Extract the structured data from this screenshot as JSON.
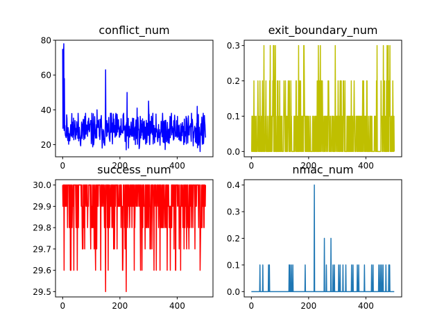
{
  "chart_data": [
    {
      "type": "line",
      "title": "conflict_num",
      "xlim": [
        -25,
        525
      ],
      "ylim": [
        13,
        80
      ],
      "xticks": [
        0,
        200,
        400
      ],
      "xtick_labels": [
        "0",
        "200",
        "400"
      ],
      "yticks": [
        20,
        40,
        60,
        80
      ],
      "ytick_labels": [
        "20",
        "40",
        "60",
        "80"
      ],
      "color": "#0000ff",
      "grid": false,
      "series": [
        {
          "kind": "noise",
          "min": 16,
          "max": 38,
          "base": 28,
          "spread": 5,
          "seed": 11,
          "points": [
            [
              0,
              75
            ],
            [
              2,
              62
            ],
            [
              3,
              72
            ],
            [
              4,
              78
            ],
            [
              6,
              58
            ],
            [
              8,
              31
            ],
            [
              10,
              25
            ],
            [
              15,
              35
            ],
            [
              40,
              29
            ],
            [
              80,
              38
            ],
            [
              120,
              40
            ],
            [
              150,
              63
            ],
            [
              170,
              38
            ],
            [
              225,
              50
            ],
            [
              230,
              18
            ],
            [
              260,
              41
            ],
            [
              300,
              45
            ],
            [
              360,
              34
            ],
            [
              380,
              38
            ],
            [
              450,
              38
            ],
            [
              470,
              42
            ],
            [
              480,
              16
            ]
          ],
          "n": 500
        }
      ]
    },
    {
      "type": "line",
      "title": "exit_boundary_num",
      "xlim": [
        -25,
        525
      ],
      "ylim": [
        -0.015,
        0.315
      ],
      "xticks": [
        0,
        200,
        400
      ],
      "xtick_labels": [
        "0",
        "200",
        "400"
      ],
      "yticks": [
        0.0,
        0.1,
        0.2,
        0.3
      ],
      "ytick_labels": [
        "0.0",
        "0.1",
        "0.2",
        "0.3"
      ],
      "color": "#bfbf00",
      "grid": false,
      "series": [
        {
          "kind": "discrete",
          "levels": [
            0,
            0.1,
            0.2,
            0.3
          ],
          "weights": [
            0.55,
            0.3,
            0.1,
            0.05
          ],
          "seed": 23,
          "n": 500
        }
      ]
    },
    {
      "type": "line",
      "title": "success_num",
      "xlim": [
        -25,
        525
      ],
      "ylim": [
        29.475,
        30.025
      ],
      "xticks": [
        0,
        200,
        400
      ],
      "xtick_labels": [
        "0",
        "200",
        "400"
      ],
      "yticks": [
        29.5,
        29.6,
        29.7,
        29.8,
        29.9,
        30.0
      ],
      "ytick_labels": [
        "29.5",
        "29.6",
        "29.7",
        "29.8",
        "29.9",
        "30.0"
      ],
      "color": "#ff0000",
      "grid": false,
      "series": [
        {
          "kind": "discrete",
          "levels": [
            30.0,
            29.9,
            29.8,
            29.7,
            29.6
          ],
          "weights": [
            0.55,
            0.25,
            0.12,
            0.05,
            0.03
          ],
          "seed": 37,
          "n": 500,
          "points": [
            [
              150,
              29.5
            ],
            [
              222,
              29.5
            ],
            [
              5,
              29.6
            ],
            [
              115,
              29.6
            ],
            [
              395,
              29.6
            ],
            [
              480,
              29.6
            ]
          ]
        }
      ]
    },
    {
      "type": "line",
      "title": "nmac_num",
      "xlim": [
        -25,
        525
      ],
      "ylim": [
        -0.02,
        0.42
      ],
      "xticks": [
        0,
        200,
        400
      ],
      "xtick_labels": [
        "0",
        "200",
        "400"
      ],
      "yticks": [
        0.0,
        0.1,
        0.2,
        0.3,
        0.4
      ],
      "ytick_labels": [
        "0.0",
        "0.1",
        "0.2",
        "0.3",
        "0.4"
      ],
      "color": "#1f77b4",
      "grid": false,
      "series": [
        {
          "kind": "sparse",
          "n": 500,
          "base": 0,
          "spikes": [
            [
              30,
              0.1
            ],
            [
              40,
              0.1
            ],
            [
              60,
              0.1
            ],
            [
              63,
              0.1
            ],
            [
              132,
              0.1
            ],
            [
              135,
              0.1
            ],
            [
              140,
              0.1
            ],
            [
              145,
              0.1
            ],
            [
              188,
              0.1
            ],
            [
              220,
              0.4
            ],
            [
              255,
              0.2
            ],
            [
              262,
              0.1
            ],
            [
              278,
              0.2
            ],
            [
              285,
              0.1
            ],
            [
              290,
              0.1
            ],
            [
              305,
              0.1
            ],
            [
              310,
              0.1
            ],
            [
              320,
              0.1
            ],
            [
              330,
              0.1
            ],
            [
              350,
              0.1
            ],
            [
              355,
              0.1
            ],
            [
              370,
              0.1
            ],
            [
              375,
              0.1
            ],
            [
              395,
              0.1
            ],
            [
              420,
              0.1
            ],
            [
              425,
              0.1
            ],
            [
              445,
              0.1
            ],
            [
              450,
              0.1
            ],
            [
              455,
              0.1
            ],
            [
              460,
              0.1
            ],
            [
              470,
              0.1
            ],
            [
              480,
              0.1
            ],
            [
              483,
              0.1
            ]
          ]
        }
      ]
    }
  ]
}
